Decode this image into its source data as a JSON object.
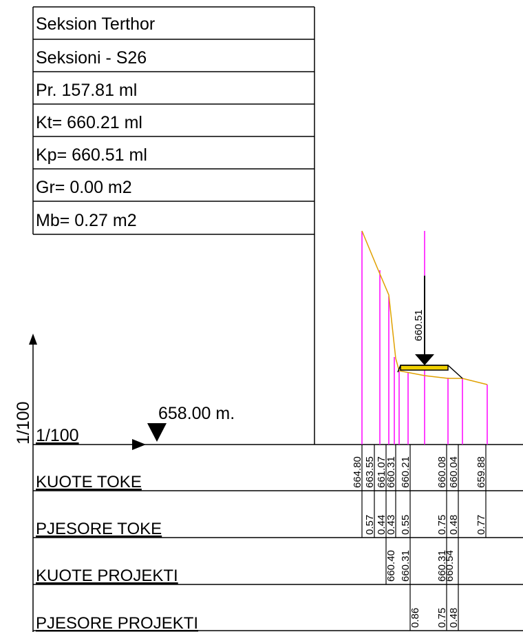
{
  "header": {
    "rows": [
      "Seksion Terthor",
      "Seksioni -  S26",
      "Pr. 157.81 ml",
      "Kt= 660.21 ml",
      "Kp= 660.51 ml",
      "Gr= 0.00 m2",
      "Mb= 0.27 m2"
    ]
  },
  "scale_label": "1/100",
  "datum_scale": "1/100",
  "datum_label": "658.00 m.",
  "project_label": "660.51",
  "bands": [
    {
      "name": "KUOTE TOKE",
      "values": [
        "664.80",
        "663.55",
        "661.07",
        "660.31",
        "660.21",
        "660.08",
        "660.04",
        "659.88"
      ]
    },
    {
      "name": "PJESORE TOKE",
      "values": [
        "0.57",
        "0.44",
        "0.43",
        "0.55",
        "0.75",
        "0.48",
        "0.77"
      ]
    },
    {
      "name": "KUOTE PROJEKTI",
      "values": [
        "660.40",
        "660.31",
        "660.31",
        "660.54"
      ]
    },
    {
      "name": "PJESORE PROJEKTI",
      "values": [
        "0.86",
        "0.75",
        "0.48"
      ]
    }
  ]
}
